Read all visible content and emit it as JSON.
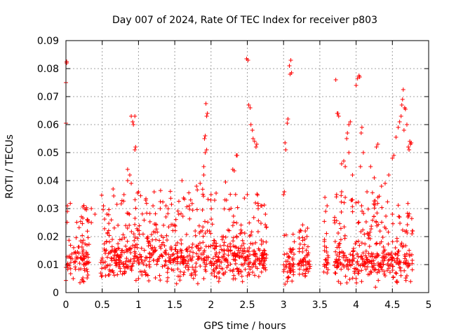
{
  "chart_data": {
    "type": "scatter",
    "title": "Day 007 of 2024, Rate Of TEC Index for receiver p803",
    "xlabel": "GPS time / hours",
    "ylabel": "ROTI / TECUs",
    "xlim": [
      0,
      5
    ],
    "ylim": [
      0,
      0.09
    ],
    "x_ticks": [
      "0",
      "0.5",
      "1",
      "1.5",
      "2",
      "2.5",
      "3",
      "3.5",
      "4",
      "4.5",
      "5"
    ],
    "y_ticks": [
      "0",
      "0.01",
      "0.02",
      "0.03",
      "0.04",
      "0.05",
      "0.06",
      "0.07",
      "0.08",
      "0.09"
    ],
    "grid": true,
    "marker": "+",
    "color": "#ff0000",
    "series": [
      {
        "name": "p803",
        "segments": [
          {
            "x": [
              0.0,
              0.32
            ],
            "base": 0.012,
            "spread": 0.02
          },
          {
            "x": [
              0.48,
              2.78
            ],
            "base": 0.013,
            "spread": 0.022
          },
          {
            "x": [
              3.0,
              3.15
            ],
            "base": 0.01,
            "spread": 0.012
          },
          {
            "x": [
              3.2,
              3.37
            ],
            "base": 0.011,
            "spread": 0.012
          },
          {
            "x": [
              3.55,
              3.62
            ],
            "base": 0.012,
            "spread": 0.015
          },
          {
            "x": [
              3.7,
              4.78
            ],
            "base": 0.012,
            "spread": 0.022
          }
        ],
        "points": [
          [
            0.01,
            0.0825
          ],
          [
            0.01,
            0.082
          ],
          [
            0.0,
            0.075
          ],
          [
            0.0,
            0.0605
          ],
          [
            0.02,
            0.031
          ],
          [
            0.02,
            0.029
          ],
          [
            0.35,
            0.03
          ],
          [
            0.4,
            0.028
          ],
          [
            0.35,
            0.025
          ],
          [
            0.3,
            0.026
          ],
          [
            0.9,
            0.063
          ],
          [
            0.92,
            0.061
          ],
          [
            0.93,
            0.06
          ],
          [
            0.95,
            0.063
          ],
          [
            0.96,
            0.052
          ],
          [
            0.95,
            0.051
          ],
          [
            0.85,
            0.044
          ],
          [
            0.88,
            0.042
          ],
          [
            0.9,
            0.039
          ],
          [
            0.85,
            0.04
          ],
          [
            1.0,
            0.036
          ],
          [
            0.65,
            0.037
          ],
          [
            0.8,
            0.035
          ],
          [
            1.1,
            0.033
          ],
          [
            1.2,
            0.031
          ],
          [
            1.3,
            0.03
          ],
          [
            1.6,
            0.04
          ],
          [
            1.7,
            0.031
          ],
          [
            1.8,
            0.038
          ],
          [
            1.85,
            0.039
          ],
          [
            1.9,
            0.045
          ],
          [
            1.93,
            0.0675
          ],
          [
            1.95,
            0.064
          ],
          [
            1.94,
            0.063
          ],
          [
            1.92,
            0.056
          ],
          [
            1.91,
            0.055
          ],
          [
            1.92,
            0.05
          ],
          [
            1.94,
            0.051
          ],
          [
            1.9,
            0.042
          ],
          [
            2.0,
            0.035
          ],
          [
            2.05,
            0.033
          ],
          [
            2.2,
            0.0395
          ],
          [
            2.3,
            0.044
          ],
          [
            2.32,
            0.0435
          ],
          [
            2.35,
            0.049
          ],
          [
            2.36,
            0.049
          ],
          [
            2.49,
            0.0835
          ],
          [
            2.51,
            0.083
          ],
          [
            2.52,
            0.067
          ],
          [
            2.54,
            0.066
          ],
          [
            2.55,
            0.06
          ],
          [
            2.57,
            0.058
          ],
          [
            2.58,
            0.055
          ],
          [
            2.6,
            0.054
          ],
          [
            2.62,
            0.052
          ],
          [
            2.63,
            0.053
          ],
          [
            2.65,
            0.03
          ],
          [
            2.7,
            0.031
          ],
          [
            2.75,
            0.028
          ],
          [
            2.5,
            0.035
          ],
          [
            3.02,
            0.0535
          ],
          [
            3.05,
            0.0605
          ],
          [
            3.06,
            0.062
          ],
          [
            3.03,
            0.051
          ],
          [
            3.01,
            0.036
          ],
          [
            3.0,
            0.035
          ],
          [
            3.08,
            0.081
          ],
          [
            3.1,
            0.083
          ],
          [
            3.09,
            0.078
          ],
          [
            3.11,
            0.0785
          ],
          [
            3.3,
            0.022
          ],
          [
            3.33,
            0.023
          ],
          [
            3.57,
            0.034
          ],
          [
            3.6,
            0.031
          ],
          [
            3.58,
            0.029
          ],
          [
            3.72,
            0.076
          ],
          [
            3.74,
            0.064
          ],
          [
            3.76,
            0.063
          ],
          [
            3.75,
            0.064
          ],
          [
            3.8,
            0.046
          ],
          [
            3.83,
            0.047
          ],
          [
            3.85,
            0.045
          ],
          [
            3.9,
            0.06
          ],
          [
            3.92,
            0.061
          ],
          [
            3.88,
            0.057
          ],
          [
            3.87,
            0.055
          ],
          [
            3.9,
            0.05
          ],
          [
            3.95,
            0.042
          ],
          [
            4.0,
            0.074
          ],
          [
            4.02,
            0.0765
          ],
          [
            4.04,
            0.0775
          ],
          [
            4.05,
            0.077
          ],
          [
            4.08,
            0.059
          ],
          [
            4.07,
            0.057
          ],
          [
            4.1,
            0.05
          ],
          [
            4.06,
            0.045
          ],
          [
            4.2,
            0.045
          ],
          [
            4.28,
            0.052
          ],
          [
            4.3,
            0.053
          ],
          [
            4.25,
            0.041
          ],
          [
            4.35,
            0.038
          ],
          [
            4.4,
            0.039
          ],
          [
            4.45,
            0.042
          ],
          [
            4.5,
            0.048
          ],
          [
            4.52,
            0.049
          ],
          [
            4.55,
            0.0555
          ],
          [
            4.58,
            0.059
          ],
          [
            4.6,
            0.061
          ],
          [
            4.62,
            0.063
          ],
          [
            4.63,
            0.067
          ],
          [
            4.64,
            0.069
          ],
          [
            4.65,
            0.0725
          ],
          [
            4.67,
            0.066
          ],
          [
            4.68,
            0.0655
          ],
          [
            4.66,
            0.058
          ],
          [
            4.7,
            0.06
          ],
          [
            4.72,
            0.052
          ],
          [
            4.73,
            0.051
          ],
          [
            4.74,
            0.054
          ],
          [
            4.75,
            0.053
          ],
          [
            4.76,
            0.0535
          ],
          [
            4.77,
            0.021
          ],
          [
            4.78,
            0.022
          ],
          [
            4.6,
            0.027
          ],
          [
            4.5,
            0.028
          ],
          [
            3.8,
            0.036
          ],
          [
            3.85,
            0.034
          ],
          [
            3.93,
            0.033
          ],
          [
            4.15,
            0.036
          ],
          [
            4.3,
            0.034
          ],
          [
            0.1,
            0.005
          ],
          [
            0.5,
            0.006
          ],
          [
            1.0,
            0.005
          ],
          [
            1.9,
            0.005
          ],
          [
            2.5,
            0.006
          ],
          [
            3.02,
            0.003
          ],
          [
            3.05,
            0.004
          ],
          [
            3.3,
            0.006
          ],
          [
            3.6,
            0.007
          ],
          [
            4.0,
            0.005
          ],
          [
            4.4,
            0.006
          ],
          [
            4.7,
            0.006
          ]
        ]
      }
    ]
  }
}
